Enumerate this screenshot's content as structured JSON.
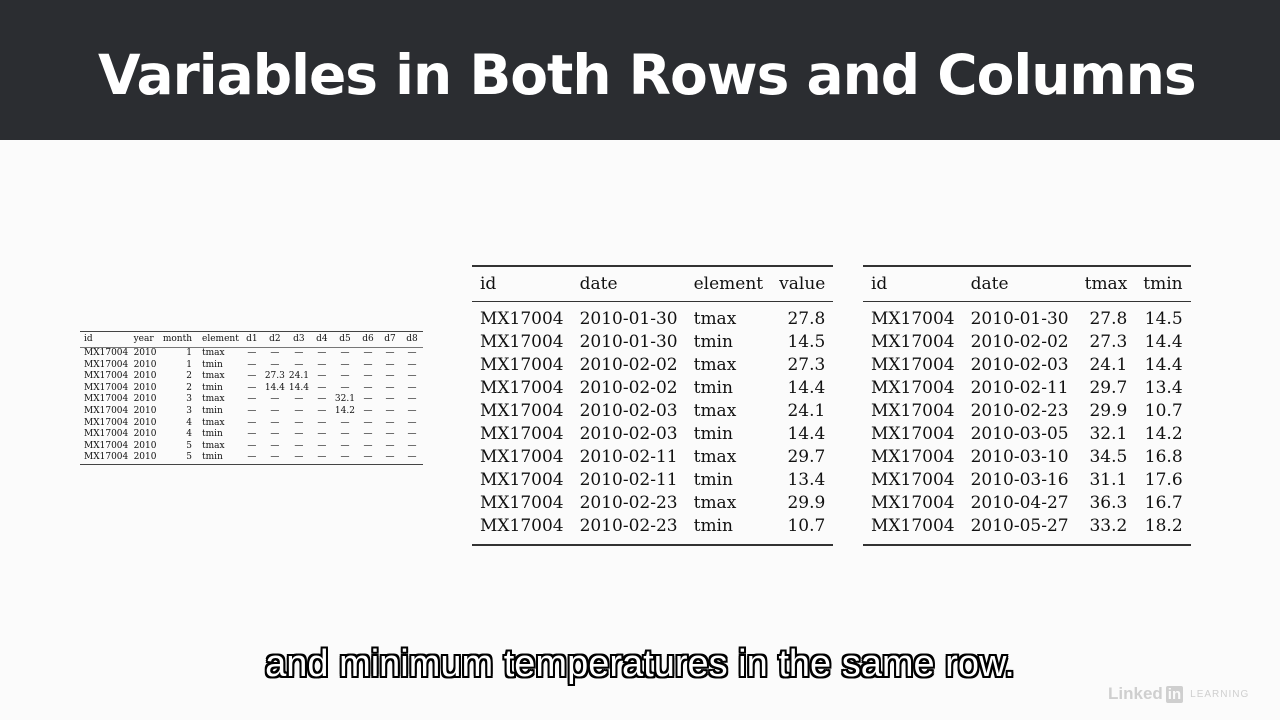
{
  "slide": {
    "title": "Variables in Both Rows and Columns"
  },
  "table_wide": {
    "headers": [
      "id",
      "year",
      "month",
      "element",
      "d1",
      "d2",
      "d3",
      "d4",
      "d5",
      "d6",
      "d7",
      "d8"
    ],
    "rows": [
      [
        "MX17004",
        "2010",
        "1",
        "tmax",
        "—",
        "—",
        "—",
        "—",
        "—",
        "—",
        "—",
        "—"
      ],
      [
        "MX17004",
        "2010",
        "1",
        "tmin",
        "—",
        "—",
        "—",
        "—",
        "—",
        "—",
        "—",
        "—"
      ],
      [
        "MX17004",
        "2010",
        "2",
        "tmax",
        "—",
        "27.3",
        "24.1",
        "—",
        "—",
        "—",
        "—",
        "—"
      ],
      [
        "MX17004",
        "2010",
        "2",
        "tmin",
        "—",
        "14.4",
        "14.4",
        "—",
        "—",
        "—",
        "—",
        "—"
      ],
      [
        "MX17004",
        "2010",
        "3",
        "tmax",
        "—",
        "—",
        "—",
        "—",
        "32.1",
        "—",
        "—",
        "—"
      ],
      [
        "MX17004",
        "2010",
        "3",
        "tmin",
        "—",
        "—",
        "—",
        "—",
        "14.2",
        "—",
        "—",
        "—"
      ],
      [
        "MX17004",
        "2010",
        "4",
        "tmax",
        "—",
        "—",
        "—",
        "—",
        "—",
        "—",
        "—",
        "—"
      ],
      [
        "MX17004",
        "2010",
        "4",
        "tmin",
        "—",
        "—",
        "—",
        "—",
        "—",
        "—",
        "—",
        "—"
      ],
      [
        "MX17004",
        "2010",
        "5",
        "tmax",
        "—",
        "—",
        "—",
        "—",
        "—",
        "—",
        "—",
        "—"
      ],
      [
        "MX17004",
        "2010",
        "5",
        "tmin",
        "—",
        "—",
        "—",
        "—",
        "—",
        "—",
        "—",
        "—"
      ]
    ]
  },
  "table_long": {
    "headers": [
      "id",
      "date",
      "element",
      "value"
    ],
    "rows": [
      [
        "MX17004",
        "2010-01-30",
        "tmax",
        "27.8"
      ],
      [
        "MX17004",
        "2010-01-30",
        "tmin",
        "14.5"
      ],
      [
        "MX17004",
        "2010-02-02",
        "tmax",
        "27.3"
      ],
      [
        "MX17004",
        "2010-02-02",
        "tmin",
        "14.4"
      ],
      [
        "MX17004",
        "2010-02-03",
        "tmax",
        "24.1"
      ],
      [
        "MX17004",
        "2010-02-03",
        "tmin",
        "14.4"
      ],
      [
        "MX17004",
        "2010-02-11",
        "tmax",
        "29.7"
      ],
      [
        "MX17004",
        "2010-02-11",
        "tmin",
        "13.4"
      ],
      [
        "MX17004",
        "2010-02-23",
        "tmax",
        "29.9"
      ],
      [
        "MX17004",
        "2010-02-23",
        "tmin",
        "10.7"
      ]
    ]
  },
  "table_tidy": {
    "headers": [
      "id",
      "date",
      "tmax",
      "tmin"
    ],
    "rows": [
      [
        "MX17004",
        "2010-01-30",
        "27.8",
        "14.5"
      ],
      [
        "MX17004",
        "2010-02-02",
        "27.3",
        "14.4"
      ],
      [
        "MX17004",
        "2010-02-03",
        "24.1",
        "14.4"
      ],
      [
        "MX17004",
        "2010-02-11",
        "29.7",
        "13.4"
      ],
      [
        "MX17004",
        "2010-02-23",
        "29.9",
        "10.7"
      ],
      [
        "MX17004",
        "2010-03-05",
        "32.1",
        "14.2"
      ],
      [
        "MX17004",
        "2010-03-10",
        "34.5",
        "16.8"
      ],
      [
        "MX17004",
        "2010-03-16",
        "31.1",
        "17.6"
      ],
      [
        "MX17004",
        "2010-04-27",
        "36.3",
        "16.7"
      ],
      [
        "MX17004",
        "2010-05-27",
        "33.2",
        "18.2"
      ]
    ]
  },
  "caption": {
    "text": "and minimum temperatures in the same row."
  },
  "watermark": {
    "brand": "Linked",
    "brand_in": "in",
    "product": "LEARNING",
    "color": "#cfcfcf"
  }
}
